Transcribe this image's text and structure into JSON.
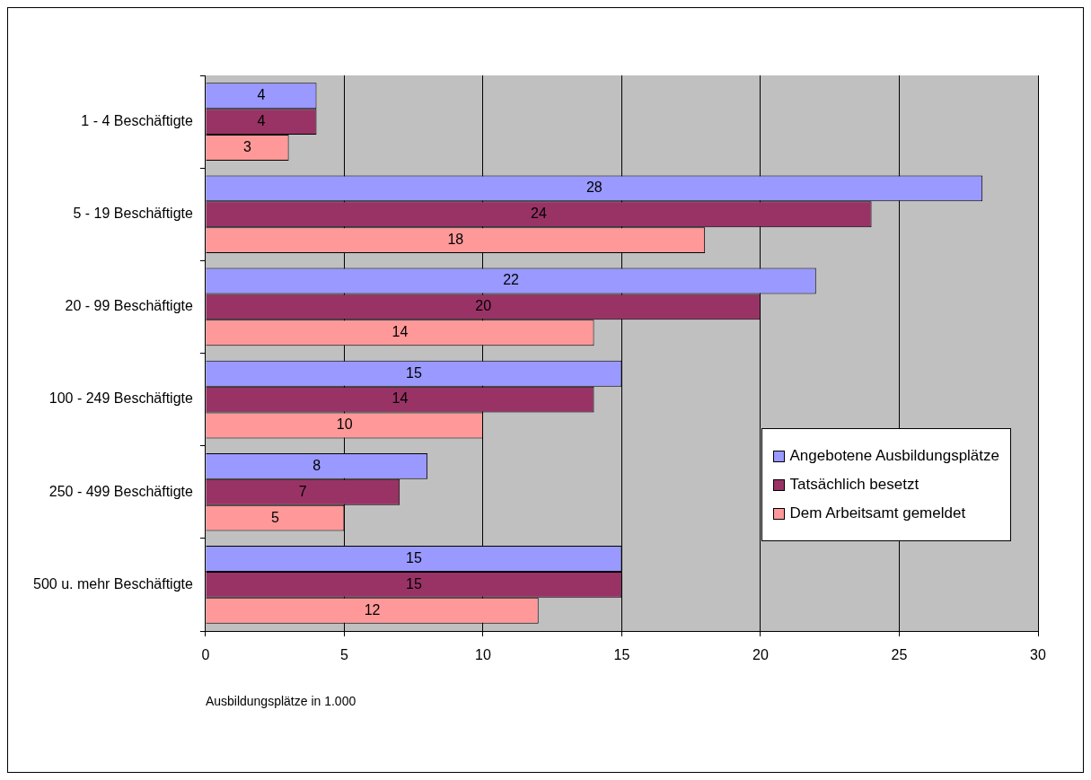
{
  "chart_data": {
    "type": "bar",
    "orientation": "horizontal",
    "xlabel": "Ausbildungsplätze in 1.000",
    "categories": [
      "1 - 4 Beschäftigte",
      "5 - 19 Beschäftigte",
      "20 - 99 Beschäftigte",
      "100 - 249 Beschäftigte",
      "250 - 499 Beschäftigte",
      "500 u. mehr Beschäftigte"
    ],
    "series": [
      {
        "name": "Angebotene Ausbildungsplätze",
        "color": "#9999ff",
        "values": [
          4,
          28,
          22,
          15,
          8,
          15
        ]
      },
      {
        "name": "Tatsächlich besetzt",
        "color": "#993366",
        "values": [
          4,
          24,
          20,
          14,
          7,
          15
        ]
      },
      {
        "name": "Dem Arbeitsamt gemeldet",
        "color": "#ff9999",
        "values": [
          3,
          18,
          14,
          10,
          5,
          12
        ]
      }
    ],
    "xlim": [
      0,
      30
    ],
    "xticks": [
      0,
      5,
      10,
      15,
      20,
      25,
      30
    ],
    "grid": "x",
    "legend": "right",
    "data_labels": true
  }
}
